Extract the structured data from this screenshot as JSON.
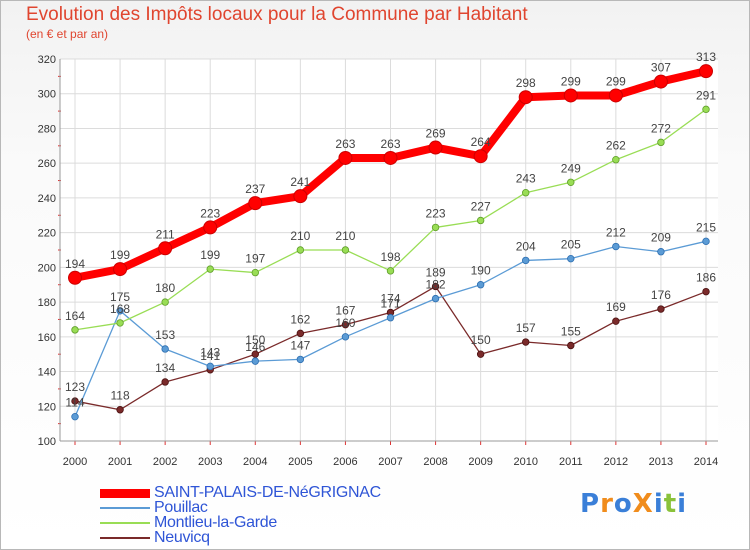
{
  "chart_data": {
    "type": "line",
    "title": "Evolution des Impôts locaux pour la Commune par Habitant",
    "subtitle": "(en € et par an)",
    "x": [
      2000,
      2001,
      2002,
      2003,
      2004,
      2005,
      2006,
      2007,
      2008,
      2009,
      2010,
      2011,
      2012,
      2013,
      2014
    ],
    "ylim": [
      100,
      320
    ],
    "yticks": [
      100,
      120,
      140,
      160,
      180,
      200,
      220,
      240,
      260,
      280,
      300,
      320
    ],
    "grid": true,
    "series": [
      {
        "name": "SAINT-PALAIS-DE-NéGRIGNAC",
        "color": "#ff0000",
        "values": [
          194,
          199,
          211,
          223,
          237,
          241,
          263,
          263,
          269,
          264,
          298,
          299,
          299,
          307,
          313
        ]
      },
      {
        "name": "Pouillac",
        "color": "#5b9bd5",
        "values": [
          114,
          175,
          153,
          143,
          146,
          147,
          160,
          171,
          182,
          190,
          204,
          205,
          212,
          209,
          215
        ]
      },
      {
        "name": "Montlieu-la-Garde",
        "color": "#99dd55",
        "values": [
          164,
          168,
          180,
          199,
          197,
          210,
          210,
          198,
          223,
          227,
          243,
          249,
          262,
          272,
          291
        ]
      },
      {
        "name": "Neuvicq",
        "color": "#7a2a2a",
        "values": [
          123,
          118,
          134,
          141,
          150,
          162,
          167,
          174,
          189,
          150,
          157,
          155,
          169,
          176,
          186
        ]
      }
    ],
    "value_labels": [
      [
        "194",
        "199",
        "211",
        "223",
        "237",
        "241",
        "263",
        "263",
        "269",
        "264",
        "298",
        "299",
        "299",
        "307",
        "313"
      ],
      [
        "114",
        "175",
        "153",
        "143",
        "146",
        "147",
        "160",
        "171",
        "182",
        "190",
        "204",
        "205",
        "212",
        "209",
        "215"
      ],
      [
        "164",
        "168",
        "180",
        "199",
        "197",
        "210",
        "210",
        "198",
        "223",
        "227",
        "243",
        "249",
        "262",
        "272",
        "291"
      ],
      [
        "123",
        "118",
        "134",
        "141",
        "150",
        "162",
        "167",
        "174",
        "189",
        "150",
        "157",
        "155",
        "169",
        "176",
        "186"
      ]
    ]
  },
  "logo": {
    "text": "ProXiti",
    "letters": [
      "P",
      "r",
      "o",
      "X",
      "i",
      "t",
      "i"
    ],
    "colors": [
      "#3a7fd8",
      "#f08c1c",
      "#3a7fd8",
      "#f08c1c",
      "#3a7fd8",
      "#8ac23a",
      "#3a7fd8"
    ]
  }
}
